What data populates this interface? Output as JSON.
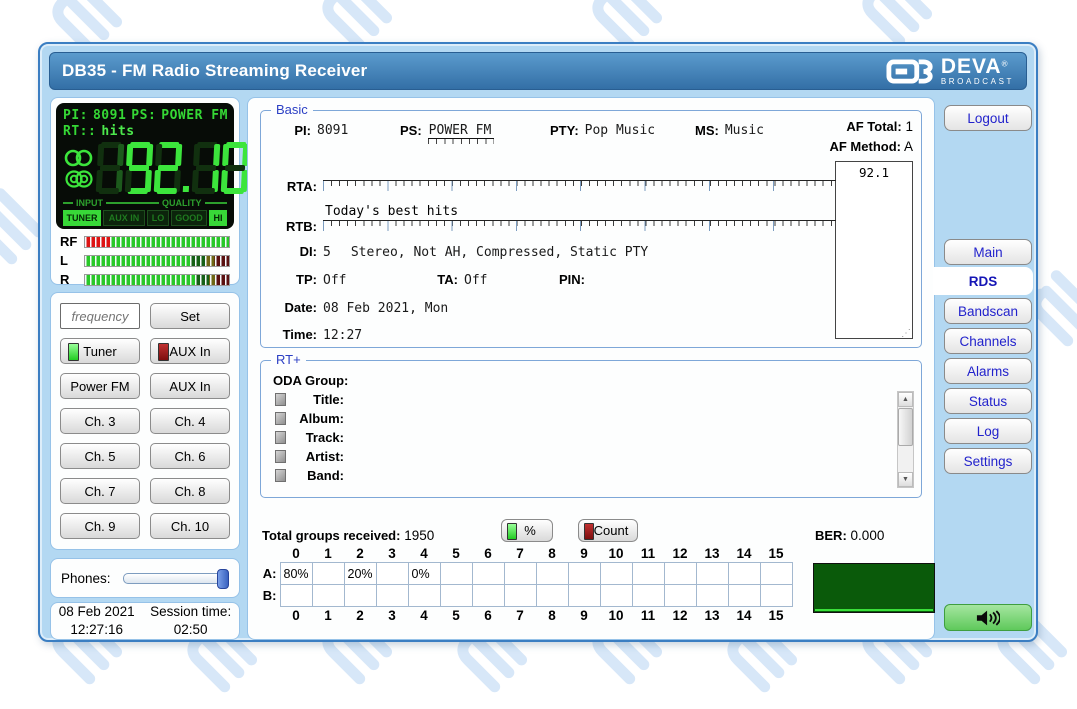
{
  "header": {
    "title": "DB35 - FM Radio Streaming Receiver",
    "brand": "DEVA",
    "registered": "®",
    "brand_sub": "BROADCAST"
  },
  "lcd": {
    "pi_label": "PI:",
    "pi": "8091",
    "ps_label": "PS:",
    "ps": "POWER FM",
    "rt_label": "RT::",
    "rt": "hits",
    "freq_ghost": "1",
    "freq": "92.10",
    "input_label": "INPUT",
    "quality_label": "QUALITY",
    "badge_tuner": "TUNER",
    "badge_aux": "AUX IN",
    "badge_lo": "LO",
    "badge_good": "GOOD",
    "badge_hi": "HI"
  },
  "meters": {
    "rf": "RF",
    "l": "L",
    "r": "R"
  },
  "controls": {
    "frequency_placeholder": "frequency",
    "set": "Set",
    "tuner": "Tuner",
    "aux_in": "AUX In",
    "power_fm": "Power FM",
    "aux_in2": "AUX In",
    "channels": [
      "Ch. 3",
      "Ch. 4",
      "Ch. 5",
      "Ch. 6",
      "Ch. 7",
      "Ch. 8",
      "Ch. 9",
      "Ch. 10"
    ],
    "phones_label": "Phones:"
  },
  "session": {
    "date": "08 Feb 2021",
    "time": "12:27:16",
    "session_label": "Session time:",
    "session_value": "02:50"
  },
  "rds": {
    "basic": {
      "legend": "Basic",
      "pi_label": "PI:",
      "pi": "8091",
      "ps_label": "PS:",
      "ps": "POWER FM",
      "pty_label": "PTY:",
      "pty": "Pop Music",
      "ms_label": "MS:",
      "ms": "Music",
      "af_total_label": "AF Total:",
      "af_total": "1",
      "af_method_label": "AF Method:",
      "af_method": "A",
      "rta_label": "RTA:",
      "rta": "",
      "rtb_label": "RTB:",
      "rtb": "Today's best hits",
      "di_label": "DI:",
      "di": "5",
      "di_flags": "Stereo, Not AH, Compressed, Static PTY",
      "tp_label": "TP:",
      "tp": "Off",
      "ta_label": "TA:",
      "ta": "Off",
      "pin_label": "PIN:",
      "pin": "",
      "date_label": "Date:",
      "date": "08 Feb 2021, Mon",
      "time_label": "Time:",
      "time": "12:27",
      "af_list": [
        "92.1"
      ]
    },
    "rtplus": {
      "legend": "RT+",
      "oda_label": "ODA Group:",
      "fields": [
        "Title:",
        "Album:",
        "Track:",
        "Artist:",
        "Band:"
      ]
    },
    "groups": {
      "total_label": "Total groups received:",
      "total": "1950",
      "percent_btn": "%",
      "count_btn": "Count",
      "columns": [
        "0",
        "1",
        "2",
        "3",
        "4",
        "5",
        "6",
        "7",
        "8",
        "9",
        "10",
        "11",
        "12",
        "13",
        "14",
        "15"
      ],
      "row_a_label": "A:",
      "row_b_label": "B:",
      "row_a": [
        "80%",
        "",
        "20%",
        "",
        "0%",
        "",
        "",
        "",
        "",
        "",
        "",
        "",
        "",
        "",
        "",
        ""
      ],
      "row_b": [
        "",
        "",
        "",
        "",
        "",
        "",
        "",
        "",
        "",
        "",
        "",
        "",
        "",
        "",
        "",
        ""
      ],
      "ber_label": "BER:",
      "ber": "0.000"
    }
  },
  "sidebar": {
    "logout": "Logout",
    "items": [
      {
        "label": "Main",
        "active": false
      },
      {
        "label": "RDS",
        "active": true
      },
      {
        "label": "Bandscan",
        "active": false
      },
      {
        "label": "Channels",
        "active": false
      },
      {
        "label": "Alarms",
        "active": false
      },
      {
        "label": "Status",
        "active": false
      },
      {
        "label": "Log",
        "active": false
      },
      {
        "label": "Settings",
        "active": false
      }
    ]
  },
  "colors": {
    "accent_blue": "#3b7ec2",
    "header_blue": "#336fa6",
    "lcd_green": "#3ce53c",
    "meter_red": "#dd1414",
    "meter_green": "#28c828",
    "ber_green": "#0a5a0a",
    "sidebar_text_blue": "#2222cc",
    "speaker_button_green": "#5fc95b"
  }
}
